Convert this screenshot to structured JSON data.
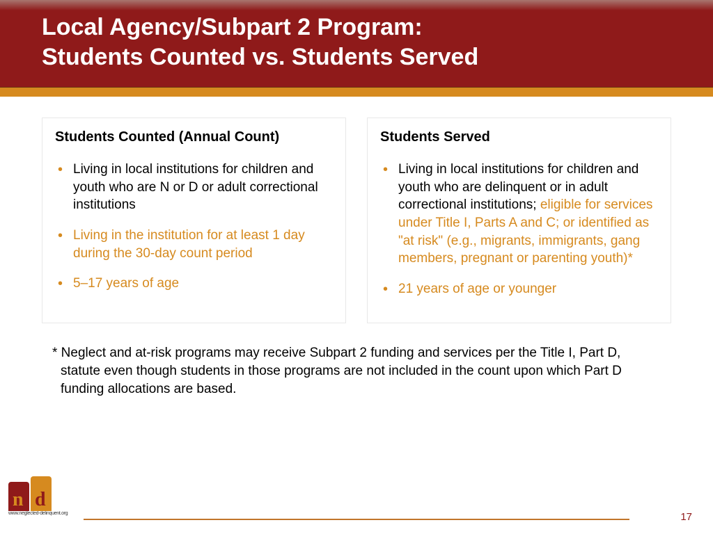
{
  "header": {
    "title_line1": "Local Agency/Subpart 2 Program:",
    "title_line2": "Students Counted vs. Students Served"
  },
  "colors": {
    "header_bg": "#8f1a1a",
    "accent": "#d68a1f",
    "panel_border": "#e8e8e8",
    "text_black": "#000000",
    "text_orange": "#d68a1f"
  },
  "panels": {
    "left": {
      "title": "Students Counted (Annual Count)",
      "items": [
        {
          "black": "Living in local institutions for children and youth who are N or D or adult correctional institutions",
          "orange": ""
        },
        {
          "black": "",
          "orange": "Living in the institution for at least 1 day during the 30-day count period"
        },
        {
          "black": "",
          "orange": "5–17 years of age"
        }
      ]
    },
    "right": {
      "title": "Students Served",
      "items": [
        {
          "black": "Living in local institutions for children and youth who are delinquent or in adult correctional institutions; ",
          "orange": "eligible for services under Title I, Parts A and C; or identified as \"at risk\" (e.g., migrants, immigrants, gang members, pregnant or parenting youth)*"
        },
        {
          "black": "",
          "orange": "21 years of age or younger"
        }
      ]
    }
  },
  "footnote": "* Neglect and at-risk programs may receive Subpart 2 funding and services per the Title I, Part D, statute even though students in those programs are not included in the count upon which Part D funding allocations are based.",
  "footer": {
    "page_number": "17",
    "logo_url": "www.neglected-delinquent.org"
  }
}
